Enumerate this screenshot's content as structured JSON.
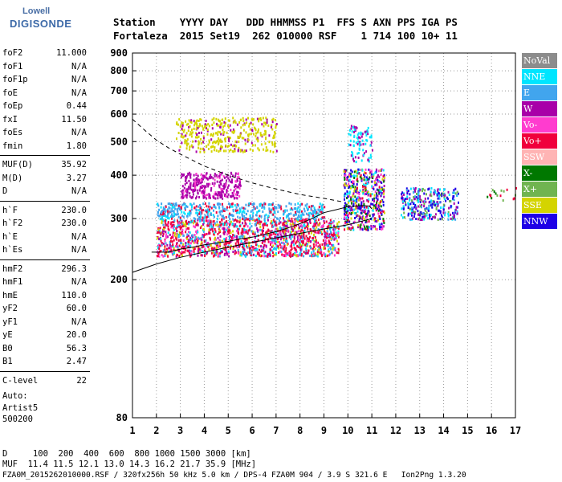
{
  "brand": {
    "line1": "Lowell",
    "line2": "DIGISONDE"
  },
  "header": {
    "row1": "Station    YYYY DAY   DDD HHMMSS P1  FFS S AXN PPS IGA PS",
    "row2": "Fortaleza  2015 Set19  262 010000 RSF    1 714 100 10+ 11"
  },
  "params": [
    {
      "label": "foF2",
      "value": "11.000"
    },
    {
      "label": "foF1",
      "value": "N/A"
    },
    {
      "label": "foF1p",
      "value": "N/A"
    },
    {
      "label": "foE",
      "value": "N/A"
    },
    {
      "label": "foEp",
      "value": "0.44"
    },
    {
      "label": "fxI",
      "value": "11.50"
    },
    {
      "label": "foEs",
      "value": "N/A"
    },
    {
      "label": "fmin",
      "value": "1.80"
    },
    {
      "sep": true
    },
    {
      "label": "MUF(D)",
      "value": "35.92"
    },
    {
      "label": "M(D)",
      "value": "3.27"
    },
    {
      "label": "D",
      "value": "N/A"
    },
    {
      "sep": true
    },
    {
      "label": "h`F",
      "value": "230.0"
    },
    {
      "label": "h`F2",
      "value": "230.0"
    },
    {
      "label": "h`E",
      "value": "N/A"
    },
    {
      "label": "h`Es",
      "value": "N/A"
    },
    {
      "sep": true
    },
    {
      "label": "hmF2",
      "value": "296.3"
    },
    {
      "label": "hmF1",
      "value": "N/A"
    },
    {
      "label": "hmE",
      "value": "110.0"
    },
    {
      "label": "yF2",
      "value": "60.0"
    },
    {
      "label": "yF1",
      "value": "N/A"
    },
    {
      "label": "yE",
      "value": "20.0"
    },
    {
      "label": "B0",
      "value": "56.3"
    },
    {
      "label": "B1",
      "value": "2.47"
    },
    {
      "sep": true
    },
    {
      "label": "C-level",
      "value": "22"
    }
  ],
  "auto": {
    "line1": "Auto:",
    "line2": "Artist5",
    "line3": "500200"
  },
  "legend": [
    {
      "label": "NoVal",
      "color": "#8c8c8c"
    },
    {
      "label": "NNE",
      "color": "#00e5ff"
    },
    {
      "label": "E",
      "color": "#41a5ee"
    },
    {
      "label": "W",
      "color": "#a800a8"
    },
    {
      "label": "Vo-",
      "color": "#ff3ccf"
    },
    {
      "label": "Vo+",
      "color": "#f0003c"
    },
    {
      "label": "SSW",
      "color": "#ffb4b4"
    },
    {
      "label": "X-",
      "color": "#007800"
    },
    {
      "label": "X+",
      "color": "#70b450"
    },
    {
      "label": "SSE",
      "color": "#d4d400"
    },
    {
      "label": "NNW",
      "color": "#1e00e6"
    }
  ],
  "footer": {
    "d_row": "D     100  200  400  600  800 1000 1500 3000 [km]",
    "muf_row": "MUF  11.4 11.5 12.1 13.0 14.3 16.2 21.7 35.9 [MHz]",
    "file_row": "FZA0M_2015262010000.RSF / 320fx256h 50 kHz 5.0 km / DPS-4 FZA0M 904 / 3.9 S 321.6 E   Ion2Png 1.3.20"
  },
  "chart_data": {
    "type": "scatter",
    "title": "",
    "xlabel": "",
    "ylabel": "",
    "xlim": [
      1,
      17
    ],
    "ylim": [
      80,
      900
    ],
    "y_scale": "log",
    "x_ticks": [
      1,
      2,
      3,
      4,
      5,
      6,
      7,
      8,
      9,
      10,
      11,
      12,
      13,
      14,
      15,
      16,
      17
    ],
    "y_ticks": [
      80,
      200,
      300,
      400,
      500,
      600,
      700,
      800,
      900
    ],
    "grid": "dotted",
    "legend": "right",
    "traces": [
      {
        "name": "trace",
        "color": "#000000",
        "x": [
          1.8,
          2.5,
          3.0,
          3.5,
          4.0,
          4.5,
          5.0,
          5.5,
          6.0,
          6.5,
          7.0,
          7.5,
          8.0,
          8.5,
          9.0,
          9.5,
          9.8,
          10.0,
          10.3,
          10.6,
          10.9,
          11.0
        ],
        "y": [
          240,
          240,
          245,
          248,
          252,
          255,
          258,
          262,
          265,
          270,
          275,
          282,
          290,
          300,
          312,
          318,
          322,
          325,
          326,
          327,
          326,
          320
        ]
      },
      {
        "name": "model_lower",
        "color": "#000000",
        "x": [
          1.0,
          2.0,
          3.0,
          4.0,
          5.0,
          6.0,
          7.0,
          8.0,
          9.0,
          10.0,
          11.0
        ],
        "y": [
          210,
          222,
          232,
          240,
          248,
          256,
          264,
          272,
          280,
          288,
          300
        ]
      },
      {
        "name": "model_dashed",
        "color": "#000000",
        "x": [
          1.0,
          1.5,
          2.0,
          2.5,
          3.0,
          4.0,
          5.0,
          6.0,
          7.0,
          8.0,
          9.0,
          9.8
        ],
        "y": [
          580,
          540,
          505,
          480,
          460,
          425,
          400,
          380,
          365,
          352,
          343,
          335
        ]
      }
    ]
  }
}
